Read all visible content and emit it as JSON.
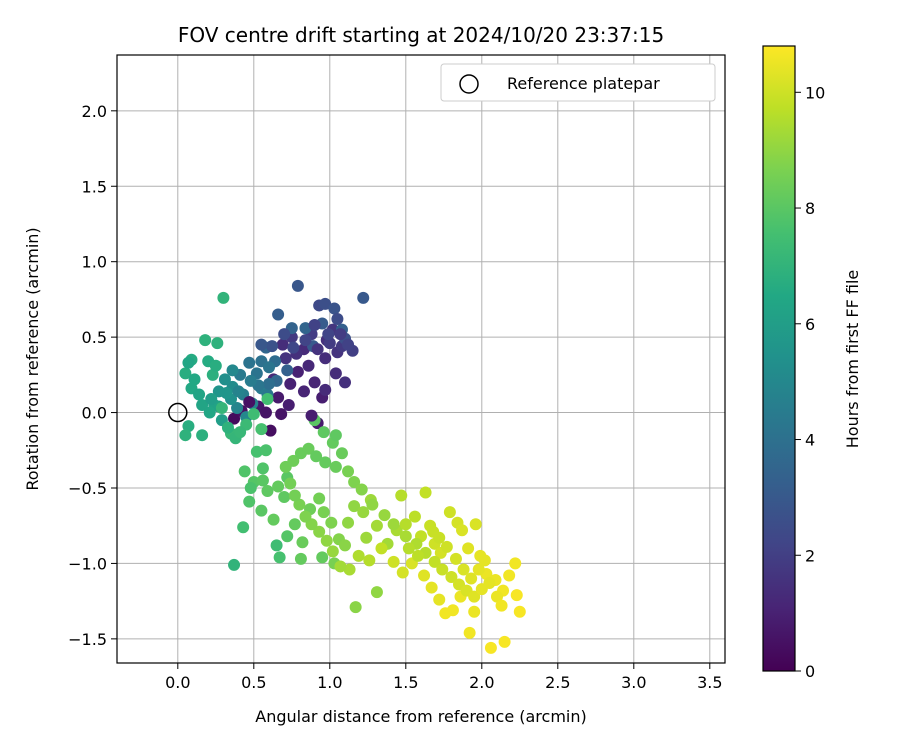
{
  "chart_data": {
    "type": "scatter",
    "title": "FOV centre drift starting at 2024/10/20 23:37:15",
    "xlabel": "Angular distance from reference (arcmin)",
    "ylabel": "Rotation from reference (arcmin)",
    "xlim": [
      -0.4,
      3.6
    ],
    "ylim": [
      -1.66,
      2.37
    ],
    "x_ticks": [
      "0.0",
      "0.5",
      "1.0",
      "1.5",
      "2.0",
      "2.5",
      "3.0",
      "3.5"
    ],
    "y_ticks": [
      "2.0",
      "1.5",
      "1.0",
      "0.5",
      "0.0",
      "−0.5",
      "−1.0",
      "−1.5"
    ],
    "grid": true,
    "legend": {
      "location": "top-right",
      "entries": [
        "Reference platepar"
      ]
    },
    "reference_point": {
      "x": 0.0,
      "y": 0.0
    },
    "colorbar": {
      "label": "Hours from first FF file",
      "range": [
        0,
        10.8
      ],
      "ticks": [
        "0",
        "2",
        "4",
        "6",
        "8",
        "10"
      ],
      "colormap": "viridis"
    },
    "points": [
      [
        0.37,
        -0.04,
        0.3
      ],
      [
        0.42,
        0.01,
        0.5
      ],
      [
        0.53,
        0.04,
        0.7
      ],
      [
        0.61,
        -0.12,
        0.4
      ],
      [
        0.68,
        -0.01,
        0.6
      ],
      [
        0.66,
        0.1,
        0.8
      ],
      [
        0.79,
        0.27,
        1.0
      ],
      [
        0.86,
        0.31,
        1.2
      ],
      [
        0.95,
        0.1,
        0.9
      ],
      [
        0.92,
        -0.07,
        0.8
      ],
      [
        0.83,
        0.42,
        1.3
      ],
      [
        0.98,
        0.48,
        1.5
      ],
      [
        1.02,
        0.55,
        1.7
      ],
      [
        0.75,
        0.5,
        1.8
      ],
      [
        0.71,
        0.36,
        1.6
      ],
      [
        0.97,
        0.36,
        1.4
      ],
      [
        1.05,
        0.4,
        1.6
      ],
      [
        0.9,
        0.2,
        1.1
      ],
      [
        0.74,
        0.19,
        1.0
      ],
      [
        0.63,
        0.22,
        1.2
      ],
      [
        0.97,
        0.15,
        1.3
      ],
      [
        1.08,
        0.44,
        1.8
      ],
      [
        1.15,
        0.41,
        2.0
      ],
      [
        1.0,
        0.46,
        1.9
      ],
      [
        0.88,
        0.52,
        1.9
      ],
      [
        0.93,
        0.71,
        2.4
      ],
      [
        0.97,
        0.72,
        2.6
      ],
      [
        1.03,
        0.69,
        2.8
      ],
      [
        1.22,
        0.76,
        3.0
      ],
      [
        0.79,
        0.84,
        2.9
      ],
      [
        0.66,
        0.65,
        3.2
      ],
      [
        0.75,
        0.56,
        3.4
      ],
      [
        0.84,
        0.56,
        3.5
      ],
      [
        0.89,
        0.44,
        3.0
      ],
      [
        0.95,
        0.59,
        3.1
      ],
      [
        1.08,
        0.55,
        3.3
      ],
      [
        1.1,
        0.49,
        2.6
      ],
      [
        0.58,
        0.43,
        3.6
      ],
      [
        0.64,
        0.34,
        3.8
      ],
      [
        0.55,
        0.34,
        4.0
      ],
      [
        0.6,
        0.3,
        4.2
      ],
      [
        0.47,
        0.33,
        4.1
      ],
      [
        0.41,
        0.25,
        4.4
      ],
      [
        0.43,
        0.12,
        4.6
      ],
      [
        0.39,
        0.03,
        4.9
      ],
      [
        0.45,
        -0.03,
        5.0
      ],
      [
        0.49,
        0.06,
        4.8
      ],
      [
        0.55,
        0.16,
        4.5
      ],
      [
        0.59,
        0.12,
        4.3
      ],
      [
        0.52,
        0.26,
        4.1
      ],
      [
        0.36,
        0.17,
        5.2
      ],
      [
        0.35,
        0.09,
        5.4
      ],
      [
        0.32,
        0.13,
        5.6
      ],
      [
        0.27,
        0.04,
        5.8
      ],
      [
        0.29,
        -0.05,
        6.0
      ],
      [
        0.24,
        0.05,
        6.2
      ],
      [
        0.21,
        0.0,
        6.4
      ],
      [
        0.16,
        0.05,
        6.3
      ],
      [
        0.09,
        0.16,
        6.5
      ],
      [
        0.05,
        0.26,
        6.7
      ],
      [
        0.09,
        0.35,
        6.6
      ],
      [
        0.07,
        0.33,
        6.4
      ],
      [
        0.2,
        0.34,
        6.6
      ],
      [
        0.23,
        0.25,
        6.8
      ],
      [
        0.26,
        0.46,
        6.9
      ],
      [
        0.3,
        0.76,
        7.0
      ],
      [
        0.18,
        0.48,
        6.9
      ],
      [
        0.07,
        -0.09,
        6.7
      ],
      [
        0.05,
        -0.15,
        6.9
      ],
      [
        0.16,
        -0.15,
        6.8
      ],
      [
        0.29,
        0.03,
        7.1
      ],
      [
        0.35,
        -0.14,
        7.2
      ],
      [
        0.38,
        -0.17,
        7.1
      ],
      [
        0.45,
        -0.08,
        7.3
      ],
      [
        0.5,
        -0.01,
        7.4
      ],
      [
        0.55,
        -0.11,
        7.6
      ],
      [
        0.59,
        0.09,
        7.5
      ],
      [
        0.52,
        -0.26,
        7.6
      ],
      [
        0.58,
        -0.25,
        7.7
      ],
      [
        0.44,
        -0.39,
        7.8
      ],
      [
        0.5,
        -0.46,
        7.9
      ],
      [
        0.56,
        -0.37,
        7.8
      ],
      [
        0.48,
        -0.5,
        7.7
      ],
      [
        0.47,
        -0.59,
        7.8
      ],
      [
        0.56,
        -0.45,
        8.0
      ],
      [
        0.59,
        -0.52,
        8.1
      ],
      [
        0.66,
        -0.49,
        8.2
      ],
      [
        0.72,
        -0.43,
        8.0
      ],
      [
        0.7,
        -0.56,
        8.1
      ],
      [
        0.63,
        -0.71,
        8.2
      ],
      [
        0.55,
        -0.65,
        8.0
      ],
      [
        0.43,
        -0.76,
        7.5
      ],
      [
        0.37,
        -1.01,
        7.0
      ],
      [
        0.65,
        -0.88,
        7.4
      ],
      [
        0.67,
        -0.96,
        7.6
      ],
      [
        0.72,
        -0.82,
        7.9
      ],
      [
        0.77,
        -0.74,
        8.2
      ],
      [
        0.82,
        -0.86,
        8.3
      ],
      [
        0.81,
        -0.97,
        8.2
      ],
      [
        0.87,
        -0.64,
        8.4
      ],
      [
        0.93,
        -0.57,
        8.5
      ],
      [
        0.96,
        -0.66,
        8.6
      ],
      [
        1.01,
        -0.73,
        8.7
      ],
      [
        1.06,
        -0.84,
        8.8
      ],
      [
        1.03,
        -1.0,
        8.6
      ],
      [
        0.95,
        -0.96,
        8.2
      ],
      [
        1.1,
        -0.88,
        8.9
      ],
      [
        1.12,
        -0.73,
        9.0
      ],
      [
        1.16,
        -0.62,
        9.0
      ],
      [
        1.22,
        -0.66,
        9.1
      ],
      [
        1.27,
        -0.58,
        9.2
      ],
      [
        1.31,
        -0.75,
        9.3
      ],
      [
        1.24,
        -0.83,
        9.2
      ],
      [
        1.17,
        -1.29,
        8.9
      ],
      [
        1.31,
        -1.19,
        9.0
      ],
      [
        1.38,
        -0.87,
        9.3
      ],
      [
        1.44,
        -0.78,
        9.4
      ],
      [
        1.47,
        -0.55,
        9.6
      ],
      [
        1.63,
        -0.53,
        9.8
      ],
      [
        1.5,
        -0.74,
        9.6
      ],
      [
        1.56,
        -0.69,
        9.7
      ],
      [
        1.6,
        -0.82,
        9.8
      ],
      [
        1.66,
        -0.75,
        9.9
      ],
      [
        1.69,
        -0.87,
        10.0
      ],
      [
        1.73,
        -0.93,
        10.1
      ],
      [
        1.79,
        -0.66,
        10.0
      ],
      [
        1.84,
        -0.73,
        10.1
      ],
      [
        1.87,
        -0.78,
        10.2
      ],
      [
        1.96,
        -0.74,
        10.2
      ],
      [
        1.91,
        -0.9,
        10.3
      ],
      [
        1.99,
        -0.95,
        10.4
      ],
      [
        2.03,
        -1.07,
        10.5
      ],
      [
        2.09,
        -1.11,
        10.5
      ],
      [
        2.14,
        -1.18,
        10.6
      ],
      [
        2.22,
        -1.0,
        10.6
      ],
      [
        2.23,
        -1.21,
        10.7
      ],
      [
        2.25,
        -1.32,
        10.7
      ],
      [
        2.15,
        -1.52,
        10.7
      ],
      [
        2.06,
        -1.56,
        10.7
      ],
      [
        1.92,
        -1.46,
        10.6
      ],
      [
        1.95,
        -1.32,
        10.5
      ],
      [
        1.86,
        -1.22,
        10.5
      ],
      [
        1.81,
        -1.31,
        10.6
      ],
      [
        1.76,
        -1.33,
        10.6
      ],
      [
        1.72,
        -1.24,
        10.4
      ],
      [
        1.67,
        -1.16,
        10.4
      ],
      [
        1.62,
        -1.08,
        10.3
      ],
      [
        1.54,
        -1.0,
        10.2
      ],
      [
        1.48,
        -1.06,
        10.1
      ],
      [
        1.42,
        -0.99,
        10.0
      ],
      [
        1.34,
        -0.9,
        9.8
      ],
      [
        1.26,
        -0.98,
        9.6
      ],
      [
        1.19,
        -0.95,
        9.5
      ],
      [
        1.13,
        -1.04,
        9.4
      ],
      [
        1.07,
        -1.02,
        9.3
      ],
      [
        1.02,
        -0.92,
        9.1
      ],
      [
        0.98,
        -0.85,
        9.0
      ],
      [
        0.93,
        -0.79,
        8.9
      ],
      [
        0.88,
        -0.74,
        8.8
      ],
      [
        0.84,
        -0.69,
        8.7
      ],
      [
        0.8,
        -0.61,
        8.6
      ],
      [
        0.77,
        -0.55,
        8.5
      ],
      [
        0.74,
        -0.47,
        8.5
      ],
      [
        0.71,
        -0.36,
        8.4
      ],
      [
        0.76,
        -0.32,
        8.4
      ],
      [
        0.81,
        -0.27,
        8.3
      ],
      [
        0.86,
        -0.24,
        8.3
      ],
      [
        0.91,
        -0.29,
        8.2
      ],
      [
        0.97,
        -0.33,
        8.2
      ],
      [
        1.04,
        -0.36,
        8.3
      ],
      [
        1.08,
        -0.27,
        8.3
      ],
      [
        1.02,
        -0.2,
        8.2
      ],
      [
        0.96,
        -0.13,
        8.1
      ],
      [
        0.9,
        -0.05,
        8.0
      ],
      [
        1.04,
        -0.15,
        8.1
      ],
      [
        1.12,
        -0.39,
        8.6
      ],
      [
        1.16,
        -0.46,
        8.7
      ],
      [
        1.21,
        -0.51,
        8.8
      ],
      [
        1.28,
        -0.61,
        9.0
      ],
      [
        1.36,
        -0.68,
        9.1
      ],
      [
        1.42,
        -0.74,
        9.2
      ],
      [
        1.5,
        -0.82,
        9.4
      ],
      [
        1.57,
        -0.87,
        9.5
      ],
      [
        1.63,
        -0.93,
        9.6
      ],
      [
        1.69,
        -0.99,
        9.8
      ],
      [
        1.74,
        -1.04,
        9.9
      ],
      [
        1.8,
        -1.09,
        10.0
      ],
      [
        1.85,
        -1.14,
        10.1
      ],
      [
        1.9,
        -1.18,
        10.2
      ],
      [
        1.95,
        -1.22,
        10.3
      ],
      [
        2.0,
        -1.17,
        10.4
      ],
      [
        2.05,
        -1.13,
        10.4
      ],
      [
        2.1,
        -1.22,
        10.5
      ],
      [
        2.13,
        -1.28,
        10.6
      ],
      [
        2.18,
        -1.08,
        10.6
      ],
      [
        1.88,
        -1.04,
        10.2
      ],
      [
        1.83,
        -0.97,
        10.1
      ],
      [
        1.77,
        -0.89,
        10.0
      ],
      [
        1.72,
        -0.83,
        9.9
      ],
      [
        1.68,
        -0.79,
        9.9
      ],
      [
        2.02,
        -0.98,
        10.4
      ],
      [
        1.98,
        -1.04,
        10.4
      ],
      [
        1.93,
        -1.1,
        10.3
      ],
      [
        1.58,
        -0.95,
        9.7
      ],
      [
        1.52,
        -0.9,
        9.6
      ],
      [
        0.83,
        0.14,
        1.1
      ],
      [
        0.73,
        0.05,
        0.9
      ],
      [
        0.88,
        -0.02,
        0.9
      ],
      [
        0.47,
        0.07,
        0.5
      ],
      [
        0.58,
        0.0,
        0.6
      ],
      [
        0.78,
        0.39,
        1.5
      ],
      [
        0.69,
        0.45,
        1.4
      ],
      [
        0.92,
        0.42,
        1.6
      ],
      [
        1.07,
        0.52,
        1.9
      ],
      [
        1.12,
        0.45,
        2.1
      ],
      [
        0.84,
        0.48,
        2.2
      ],
      [
        0.76,
        0.43,
        2.3
      ],
      [
        0.7,
        0.52,
        2.5
      ],
      [
        0.62,
        0.44,
        2.7
      ],
      [
        0.55,
        0.45,
        2.9
      ],
      [
        0.72,
        0.28,
        3.3
      ],
      [
        0.65,
        0.21,
        3.6
      ],
      [
        0.6,
        0.19,
        3.9
      ],
      [
        0.53,
        0.18,
        4.2
      ],
      [
        0.48,
        0.21,
        4.5
      ],
      [
        0.4,
        0.14,
        4.8
      ],
      [
        0.36,
        0.28,
        5.0
      ],
      [
        0.31,
        0.22,
        5.3
      ],
      [
        0.27,
        0.14,
        5.6
      ],
      [
        0.22,
        0.09,
        6.0
      ],
      [
        0.14,
        0.12,
        6.3
      ],
      [
        0.11,
        0.22,
        6.5
      ],
      [
        0.25,
        0.31,
        6.7
      ],
      [
        0.33,
        -0.1,
        6.9
      ],
      [
        0.41,
        -0.13,
        7.2
      ],
      [
        1.1,
        0.2,
        1.5
      ],
      [
        1.04,
        0.26,
        1.4
      ],
      [
        0.9,
        0.58,
        2.1
      ],
      [
        1.05,
        0.62,
        2.5
      ],
      [
        0.99,
        0.52,
        2.2
      ]
    ]
  }
}
